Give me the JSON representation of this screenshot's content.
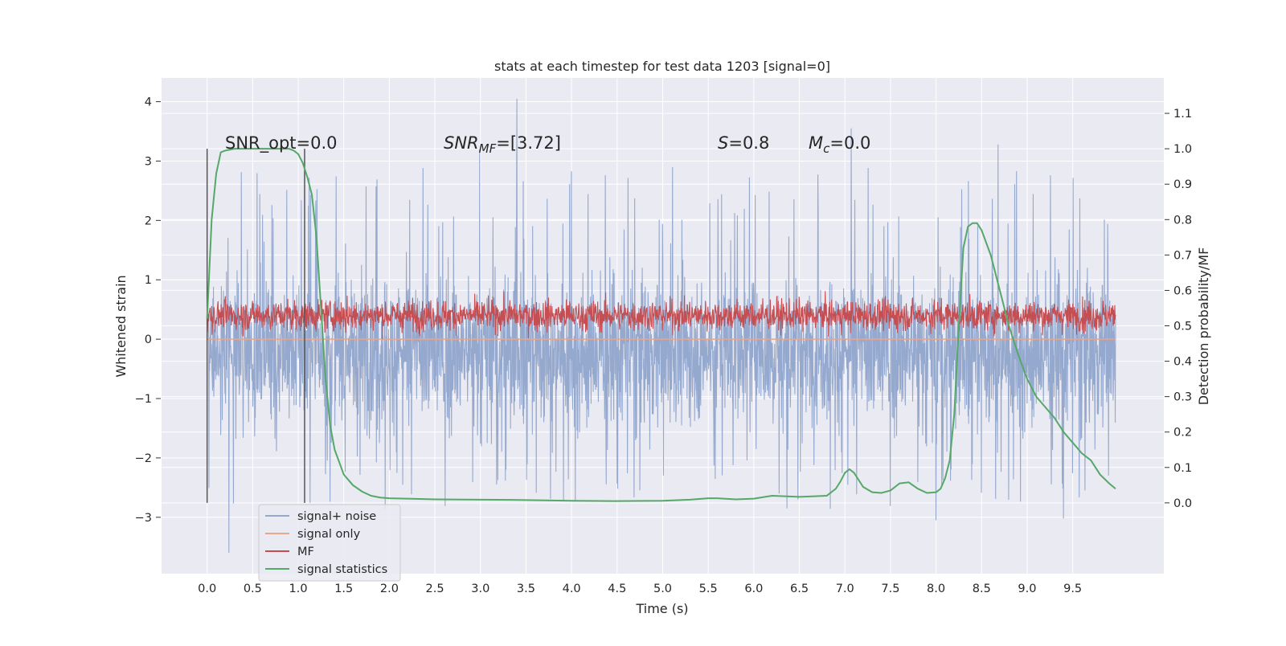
{
  "chart_data": {
    "type": "line",
    "title": "stats at each timestep for test data 1203 [signal=0]",
    "xlabel": "Time (s)",
    "ylabel": "Whitened strain",
    "ylabel_right": "Detection probability/MF",
    "xlim": [
      -0.5,
      10.5
    ],
    "ylim": [
      -3.95,
      4.4
    ],
    "ylim_right": [
      -0.2,
      1.2
    ],
    "xticks": [
      "0.0",
      "0.5",
      "1.0",
      "1.5",
      "2.0",
      "2.5",
      "3.0",
      "3.5",
      "4.0",
      "4.5",
      "5.0",
      "5.5",
      "6.0",
      "6.5",
      "7.0",
      "7.5",
      "8.0",
      "8.5",
      "9.0",
      "9.5"
    ],
    "yticks_left": [
      "4",
      "3",
      "2",
      "1",
      "0",
      "−1",
      "−2",
      "−3"
    ],
    "yticks_right": [
      "1.1",
      "1.0",
      "0.9",
      "0.8",
      "0.7",
      "0.6",
      "0.5",
      "0.4",
      "0.3",
      "0.2",
      "0.1",
      "0.0"
    ],
    "grid": true,
    "legend_position": "lower-left",
    "annotations": {
      "snr_opt": "SNR_opt=0.0",
      "snr_mf_base": "SNR",
      "snr_mf_sub": "MF",
      "snr_mf_rest": "=[3.72]",
      "s_var": "S",
      "s_rest": "=0.8",
      "mc_var": "M",
      "mc_sub": "c",
      "mc_rest": "=0.0"
    },
    "vlines": [
      0.0,
      1.07
    ],
    "series": [
      {
        "name": "signal+ noise",
        "color": "#95a9cf",
        "summary": {
          "t_start": 0.0,
          "t_end": 9.97,
          "typical_range": [
            -2.3,
            2.2
          ],
          "peaks": [
            [
              3.4,
              4.05
            ],
            [
              2.99,
              3.2
            ],
            [
              7.07,
              3.55
            ],
            [
              8.68,
              3.28
            ],
            [
              0.24,
              -3.6
            ],
            [
              8.0,
              -3.05
            ],
            [
              9.4,
              -3.02
            ]
          ]
        }
      },
      {
        "name": "signal only",
        "color": "#e8a68a",
        "values": 0
      },
      {
        "name": "MF",
        "color": "#c44e52",
        "summary": {
          "t_start": 0.0,
          "t_end": 9.97,
          "typical_range": [
            0.0,
            0.85
          ]
        }
      },
      {
        "name": "signal statistics",
        "color": "#55a868",
        "axis": "right",
        "x": [
          0.0,
          0.05,
          0.1,
          0.15,
          0.2,
          0.3,
          0.4,
          0.5,
          0.6,
          0.7,
          0.8,
          0.9,
          0.95,
          1.0,
          1.05,
          1.1,
          1.15,
          1.2,
          1.25,
          1.3,
          1.35,
          1.4,
          1.5,
          1.6,
          1.7,
          1.8,
          1.9,
          2.0,
          2.2,
          2.5,
          3.0,
          3.5,
          4.0,
          4.5,
          5.0,
          5.3,
          5.5,
          5.6,
          5.8,
          6.0,
          6.2,
          6.5,
          6.8,
          6.9,
          6.95,
          7.0,
          7.05,
          7.1,
          7.2,
          7.3,
          7.4,
          7.5,
          7.6,
          7.7,
          7.8,
          7.9,
          8.0,
          8.05,
          8.1,
          8.15,
          8.2,
          8.25,
          8.3,
          8.35,
          8.4,
          8.45,
          8.5,
          8.6,
          8.7,
          8.8,
          8.9,
          9.0,
          9.1,
          9.2,
          9.3,
          9.4,
          9.5,
          9.6,
          9.7,
          9.8,
          9.9,
          9.97
        ],
        "values": [
          0.52,
          0.8,
          0.93,
          0.99,
          0.995,
          1.0,
          1.0,
          1.0,
          1.0,
          1.0,
          1.0,
          1.0,
          0.995,
          0.985,
          0.96,
          0.92,
          0.87,
          0.75,
          0.55,
          0.35,
          0.22,
          0.15,
          0.08,
          0.05,
          0.032,
          0.02,
          0.015,
          0.013,
          0.012,
          0.01,
          0.009,
          0.008,
          0.006,
          0.005,
          0.006,
          0.009,
          0.013,
          0.013,
          0.01,
          0.012,
          0.02,
          0.017,
          0.02,
          0.04,
          0.06,
          0.085,
          0.095,
          0.085,
          0.045,
          0.03,
          0.028,
          0.035,
          0.055,
          0.058,
          0.04,
          0.028,
          0.03,
          0.04,
          0.07,
          0.12,
          0.25,
          0.5,
          0.72,
          0.78,
          0.79,
          0.79,
          0.77,
          0.7,
          0.6,
          0.5,
          0.42,
          0.35,
          0.3,
          0.27,
          0.24,
          0.2,
          0.17,
          0.14,
          0.12,
          0.08,
          0.055,
          0.04
        ]
      }
    ]
  }
}
